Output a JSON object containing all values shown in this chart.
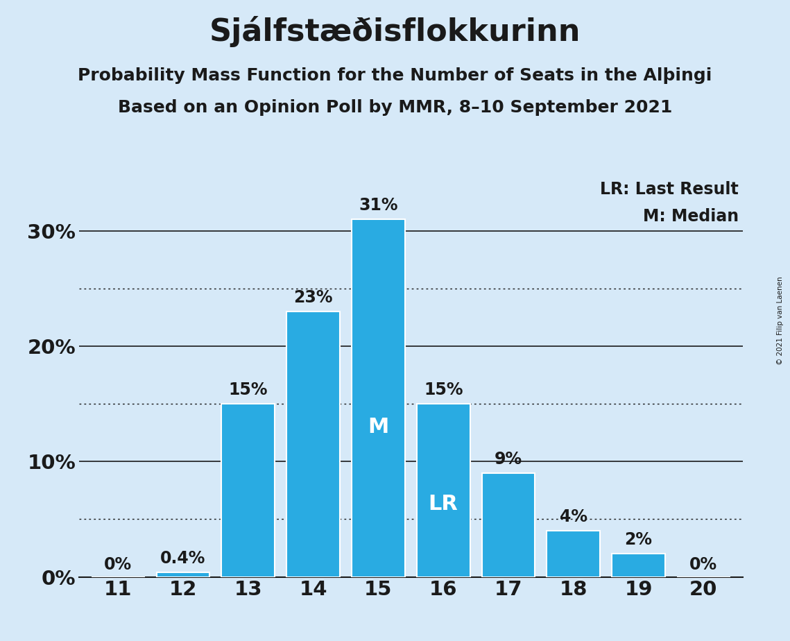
{
  "title": "Sjálfstæðisflokkurinn",
  "subtitle1": "Probability Mass Function for the Number of Seats in the Alþingi",
  "subtitle2": "Based on an Opinion Poll by MMR, 8–10 September 2021",
  "copyright": "© 2021 Filip van Laenen",
  "seats": [
    11,
    12,
    13,
    14,
    15,
    16,
    17,
    18,
    19,
    20
  ],
  "probabilities": [
    0.0,
    0.4,
    15.0,
    23.0,
    31.0,
    15.0,
    9.0,
    4.0,
    2.0,
    0.0
  ],
  "bar_color": "#29ABE2",
  "background_color": "#D6E9F8",
  "bar_labels": [
    "0%",
    "0.4%",
    "15%",
    "23%",
    "31%",
    "15%",
    "9%",
    "4%",
    "2%",
    "0%"
  ],
  "median_seat": 15,
  "last_result_seat": 16,
  "yticks": [
    0,
    10,
    20,
    30
  ],
  "ytick_labels": [
    "0%",
    "10%",
    "20%",
    "30%"
  ],
  "ylim": [
    0,
    35
  ],
  "dotted_yticks": [
    5,
    15,
    25
  ],
  "legend_lr": "LR: Last Result",
  "legend_m": "M: Median",
  "title_fontsize": 32,
  "subtitle_fontsize": 18,
  "label_fontsize": 17,
  "axis_fontsize": 21,
  "inner_label_fontsize": 22
}
